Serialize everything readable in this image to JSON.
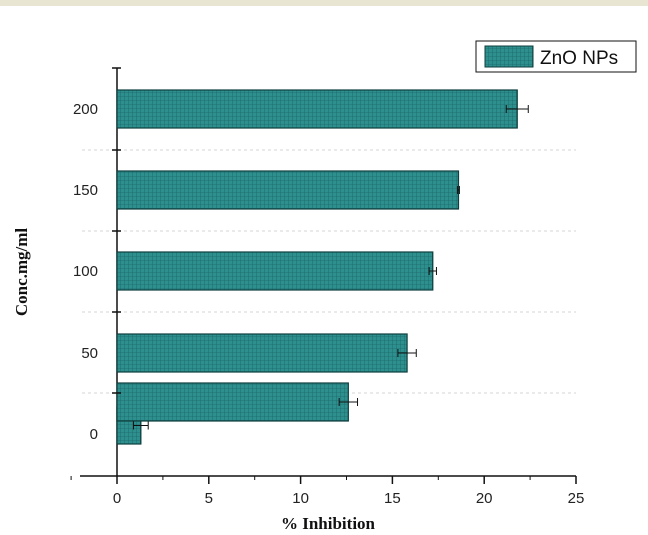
{
  "chart_data": {
    "type": "bar",
    "orientation": "horizontal",
    "title": "",
    "xlabel": "% Inhibition",
    "ylabel": "Conc.mg/ml",
    "categories": [
      "0",
      "50",
      "100",
      "150",
      "200"
    ],
    "xlim": [
      -2,
      25
    ],
    "xticks": [
      0,
      5,
      10,
      15,
      20,
      25
    ],
    "grid": "horizontal dashed",
    "legend_position": "top-right",
    "colors": {
      "bar": "#2e8f8f",
      "bar_stroke": "#0e3e3e",
      "hatch": "#1c6666"
    },
    "series": [
      {
        "name": "ZnO NPs",
        "values": [
          {
            "category": "0",
            "value": 1.3,
            "error": 0.4
          },
          {
            "category": "",
            "value": 12.6,
            "error": 0.5
          },
          {
            "category": "50",
            "value": 15.8,
            "error": 0.5
          },
          {
            "category": "100",
            "value": 17.2,
            "error": 0.2
          },
          {
            "category": "150",
            "value": 18.6,
            "error": 0.05
          },
          {
            "category": "200",
            "value": 21.8,
            "error": 0.6
          }
        ]
      }
    ]
  }
}
